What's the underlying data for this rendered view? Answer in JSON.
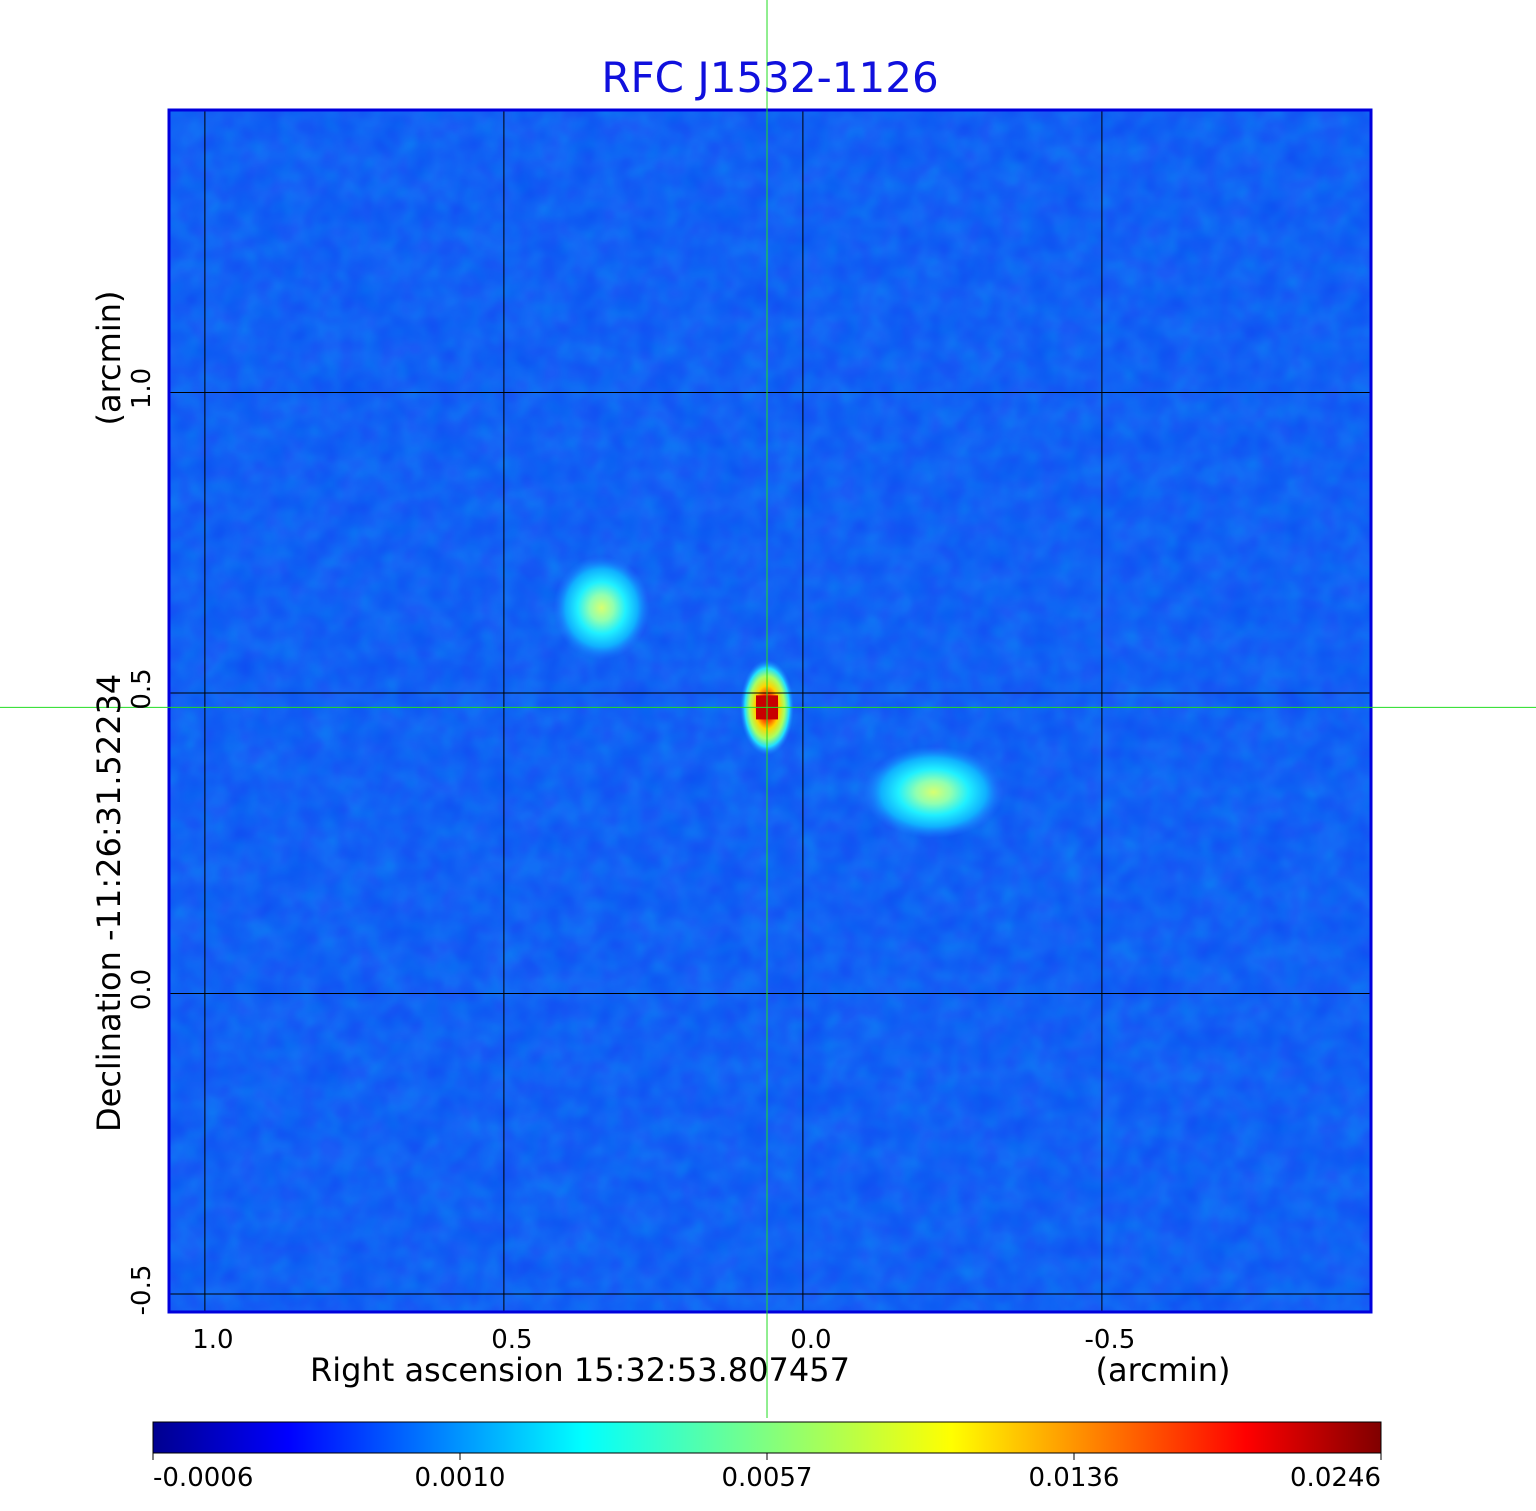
{
  "chart_data": {
    "type": "heatmap",
    "title": "RFC J1532-1126",
    "xlabel": "Right ascension  15:32:53.807457",
    "xlabel_unit": "(arcmin)",
    "ylabel": "Declination  -11:26:31.52234",
    "ylabel_unit": "(arcmin)",
    "x_ticks": [
      {
        "value": 1.0,
        "label": "1.0"
      },
      {
        "value": 0.5,
        "label": "0.5"
      },
      {
        "value": 0.0,
        "label": "0.0"
      },
      {
        "value": -0.5,
        "label": "-0.5"
      }
    ],
    "y_ticks": [
      {
        "value": 1.0,
        "label": "1.0"
      },
      {
        "value": 0.5,
        "label": "0.5"
      },
      {
        "value": 0.0,
        "label": "0.0"
      },
      {
        "value": -0.5,
        "label": "-0.5"
      }
    ],
    "x_range": [
      1.06,
      -0.95
    ],
    "y_range": [
      -0.53,
      1.47
    ],
    "grid": true,
    "crosshair": {
      "x": 0.06,
      "y": 0.476
    },
    "sources": [
      {
        "x": 0.06,
        "y": 0.476,
        "peak": 0.0246
      },
      {
        "x": 0.345,
        "y": 0.65,
        "peak": 0.008
      },
      {
        "x": -0.195,
        "y": 0.345,
        "peak": 0.0065
      }
    ],
    "colorbar": {
      "colormap": "jet",
      "ticks": [
        "-0.0006",
        "0.0010",
        "0.0057",
        "0.0136",
        "0.0246"
      ]
    }
  }
}
